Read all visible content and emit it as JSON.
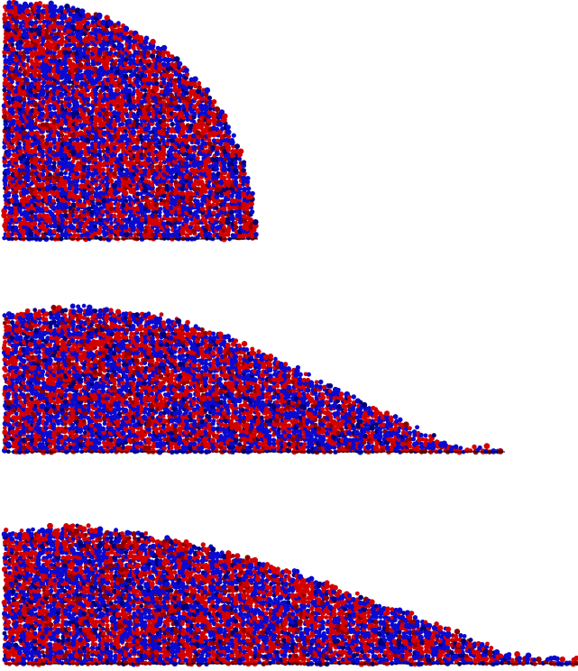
{
  "colors": {
    "particle_a": "#d40000",
    "particle_b": "#0a0ad0",
    "particle_a_dark": "#8e0000",
    "particle_b_dark": "#00007a",
    "background": "#ffffff"
  },
  "panels": [
    {
      "name": "initial-column"
    },
    {
      "name": "intermediate-spreading"
    },
    {
      "name": "final-deposit"
    }
  ]
}
